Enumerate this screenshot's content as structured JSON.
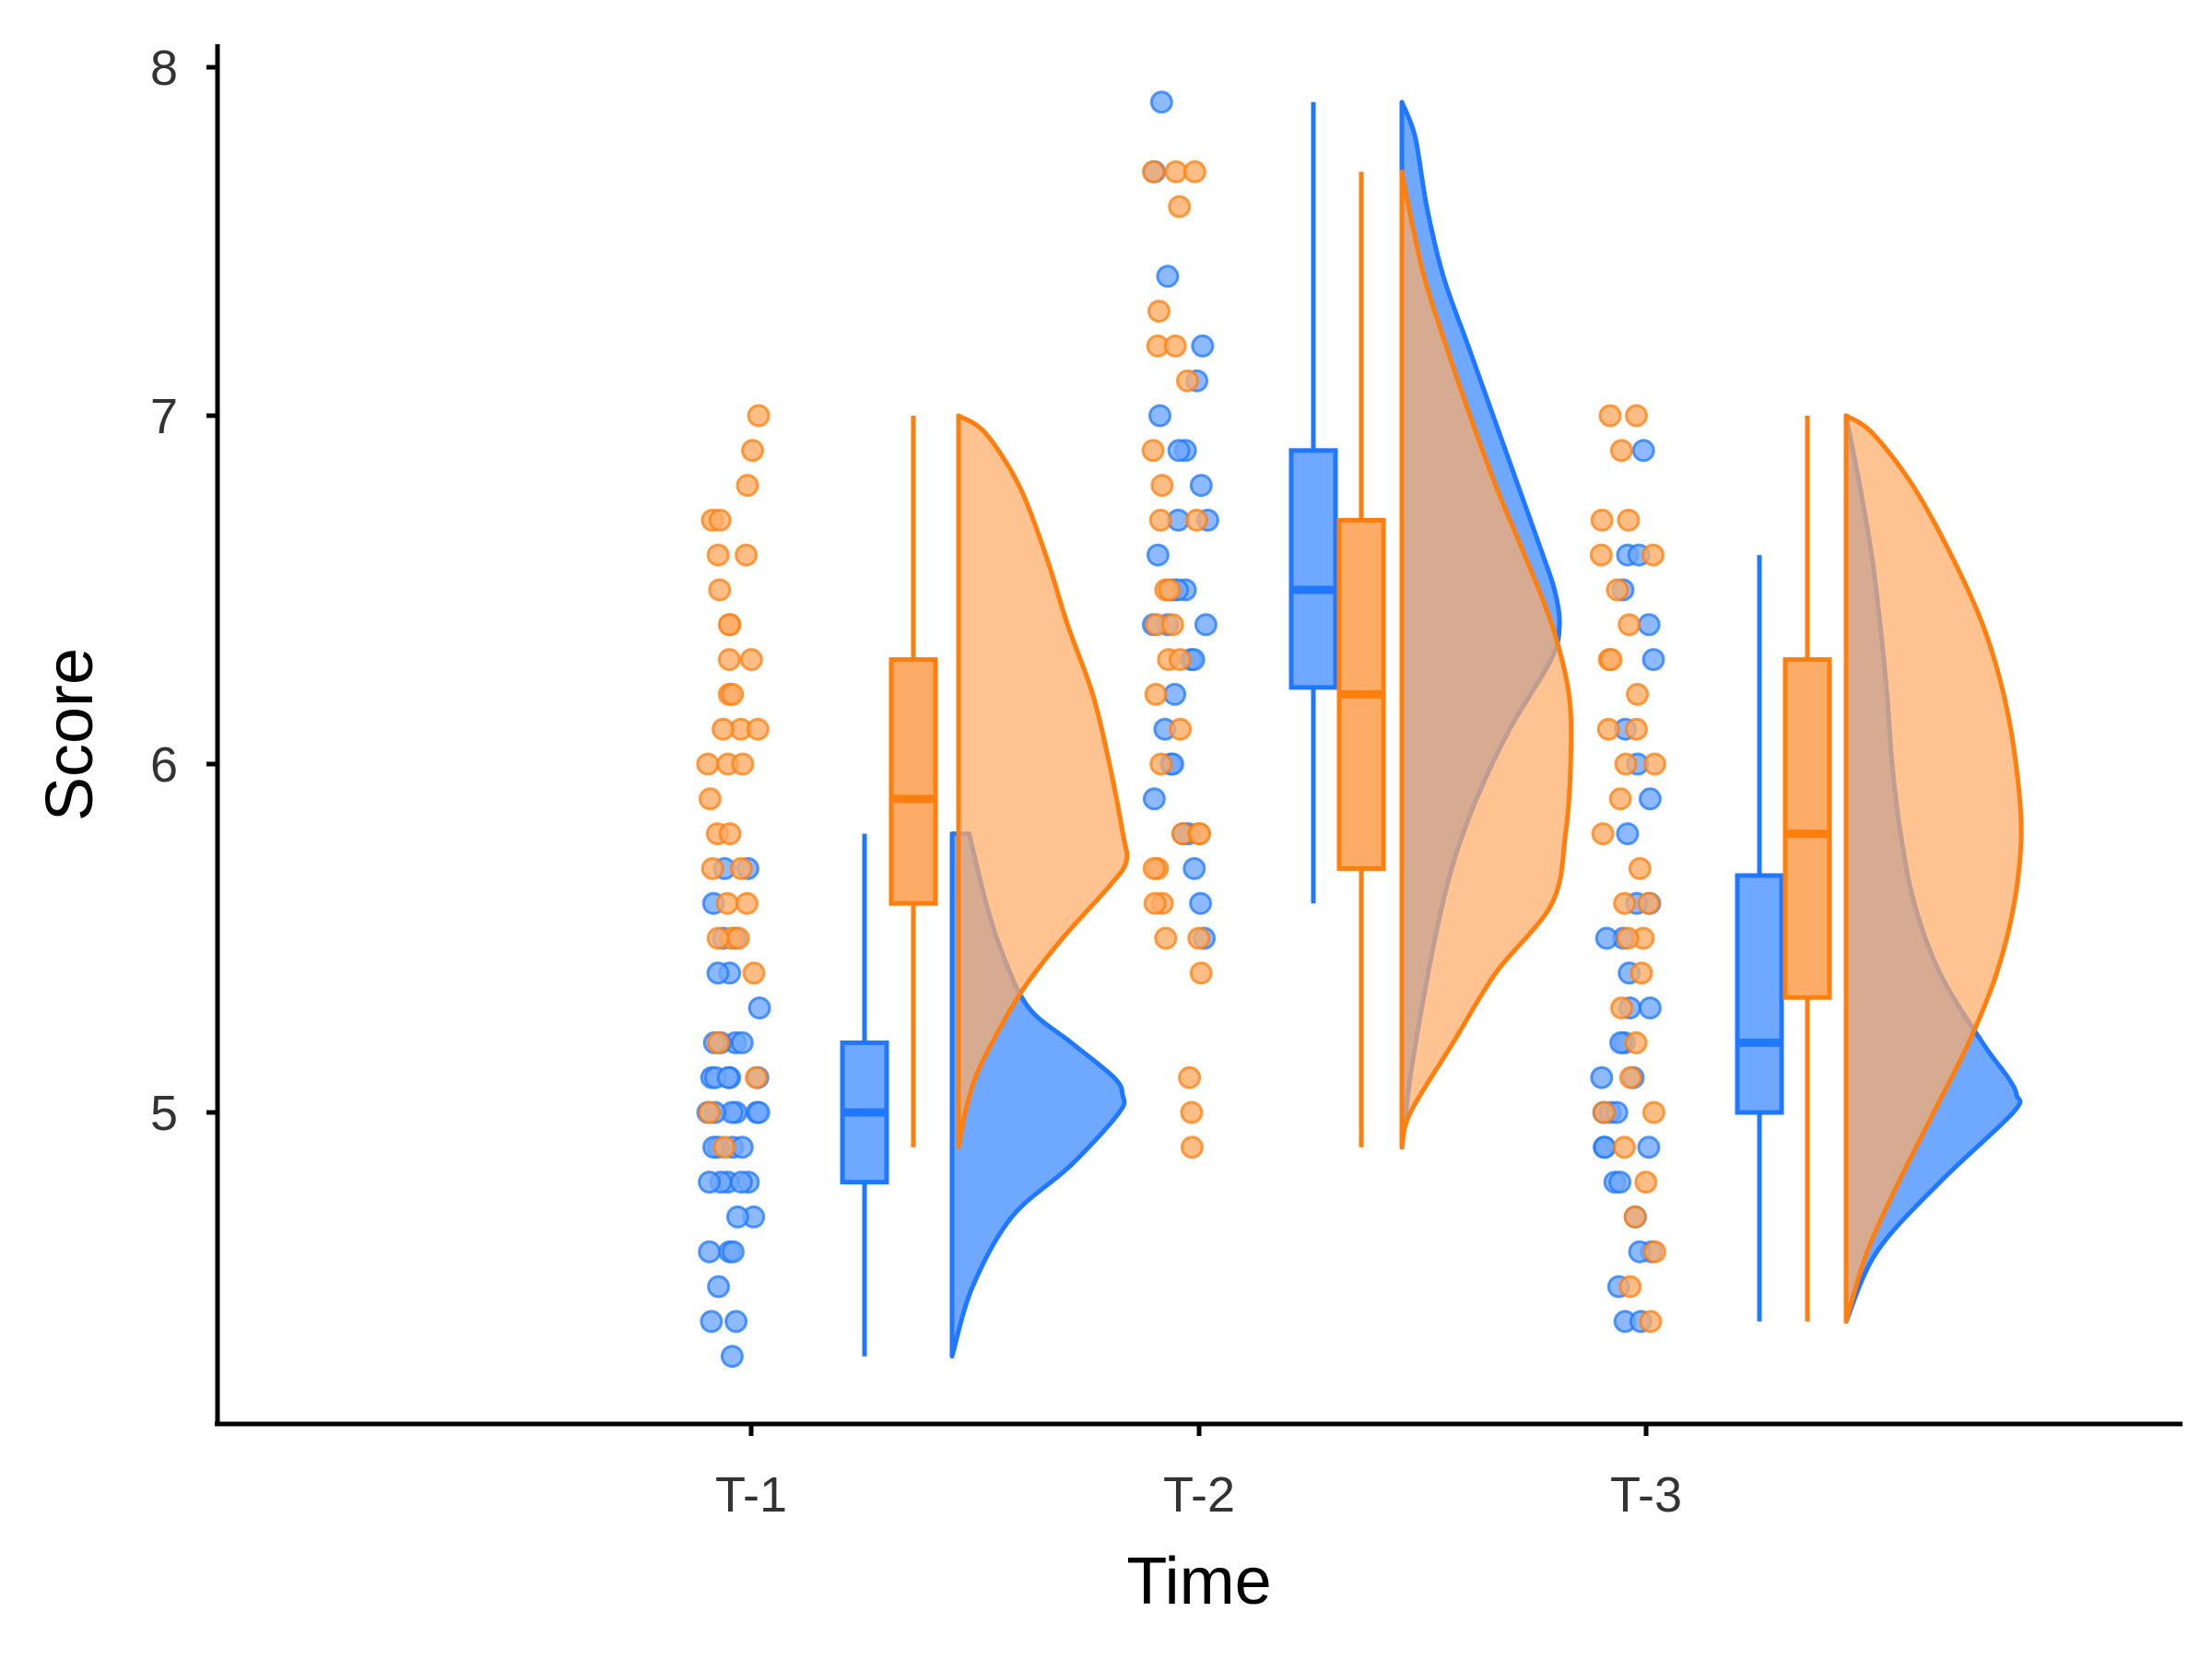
{
  "chart_data": {
    "type": "raincloud",
    "xlabel": "Time",
    "ylabel": "Score",
    "categories": [
      "T-1",
      "T-2",
      "T-3"
    ],
    "ylim": [
      4.13,
      8.07
    ],
    "yticks": [
      "5",
      "6",
      "7",
      "8"
    ],
    "grid": false,
    "legend": "none",
    "series": [
      {
        "color": "#1F78FF",
        "fill": "#6FA8FF",
        "groups": [
          {
            "category": "T-1",
            "box": {
              "min": 4.3,
              "q1": 4.8,
              "median": 5.0,
              "q3": 5.2,
              "max": 5.8
            },
            "density": {
              "min": 4.3,
              "max": 5.8,
              "y": [
                4.3,
                4.5,
                4.7,
                4.85,
                5.0,
                5.05,
                5.1,
                5.2,
                5.3,
                5.45,
                5.6,
                5.8
              ],
              "w": [
                0.0,
                0.12,
                0.35,
                0.7,
                0.98,
                1.0,
                0.95,
                0.7,
                0.45,
                0.3,
                0.2,
                0.1
              ]
            },
            "points": [
              4.3,
              4.4,
              4.4,
              4.5,
              4.6,
              4.6,
              4.6,
              4.7,
              4.7,
              4.8,
              4.8,
              4.8,
              4.8,
              4.8,
              4.9,
              4.9,
              4.9,
              4.9,
              5.0,
              5.0,
              5.0,
              5.0,
              5.0,
              5.0,
              5.1,
              5.1,
              5.1,
              5.1,
              5.1,
              5.2,
              5.2,
              5.2,
              5.2,
              5.3,
              5.4,
              5.4,
              5.5,
              5.5,
              5.6,
              5.7,
              5.7
            ]
          },
          {
            "category": "T-2",
            "box": {
              "min": 5.6,
              "q1": 6.22,
              "median": 6.5,
              "q3": 6.9,
              "max": 7.9
            },
            "density": {
              "min": 4.9,
              "max": 7.9,
              "y": [
                4.9,
                5.1,
                5.3,
                5.5,
                5.7,
                5.9,
                6.1,
                6.3,
                6.4,
                6.5,
                6.6,
                6.8,
                7.0,
                7.2,
                7.4,
                7.6,
                7.8,
                7.9
              ],
              "w": [
                0.0,
                0.05,
                0.12,
                0.2,
                0.3,
                0.45,
                0.65,
                0.9,
                0.95,
                0.92,
                0.85,
                0.7,
                0.55,
                0.4,
                0.25,
                0.15,
                0.08,
                0.0
              ]
            },
            "points": [
              5.5,
              5.6,
              5.7,
              5.8,
              5.8,
              5.9,
              6.0,
              6.0,
              6.1,
              6.2,
              6.3,
              6.3,
              6.4,
              6.4,
              6.4,
              6.5,
              6.5,
              6.5,
              6.6,
              6.7,
              6.7,
              6.8,
              6.9,
              6.9,
              7.0,
              7.1,
              7.2,
              7.4,
              7.7,
              7.9
            ]
          },
          {
            "category": "T-3",
            "box": {
              "min": 4.4,
              "q1": 5.0,
              "median": 5.2,
              "q3": 5.68,
              "max": 6.6
            },
            "density": {
              "min": 4.4,
              "max": 7.0,
              "y": [
                4.4,
                4.6,
                4.8,
                5.0,
                5.05,
                5.1,
                5.2,
                5.4,
                5.6,
                5.8,
                6.0,
                6.2,
                6.4,
                6.6,
                6.8,
                7.0
              ],
              "w": [
                0.0,
                0.18,
                0.55,
                0.98,
                1.0,
                0.95,
                0.8,
                0.55,
                0.4,
                0.32,
                0.27,
                0.24,
                0.2,
                0.15,
                0.08,
                0.0
              ]
            },
            "points": [
              4.4,
              4.4,
              4.5,
              4.6,
              4.6,
              4.7,
              4.8,
              4.8,
              4.9,
              4.9,
              4.9,
              5.0,
              5.0,
              5.0,
              5.1,
              5.1,
              5.2,
              5.2,
              5.3,
              5.3,
              5.4,
              5.5,
              5.5,
              5.6,
              5.6,
              5.8,
              5.9,
              6.0,
              6.1,
              6.3,
              6.4,
              6.5,
              6.6,
              6.6,
              6.9
            ]
          }
        ]
      },
      {
        "color": "#FF7F0E",
        "fill": "#FDAC67",
        "groups": [
          {
            "category": "T-1",
            "box": {
              "min": 4.9,
              "q1": 5.6,
              "median": 5.9,
              "q3": 6.3,
              "max": 7.0
            },
            "density": {
              "min": 4.9,
              "max": 7.0,
              "y": [
                4.9,
                5.0,
                5.1,
                5.2,
                5.35,
                5.5,
                5.65,
                5.72,
                5.8,
                6.0,
                6.2,
                6.4,
                6.6,
                6.8,
                6.95,
                7.0
              ],
              "w": [
                0.0,
                0.04,
                0.1,
                0.2,
                0.38,
                0.62,
                0.9,
                1.0,
                0.98,
                0.9,
                0.8,
                0.65,
                0.52,
                0.36,
                0.16,
                0.0
              ]
            },
            "points": [
              4.9,
              5.0,
              5.1,
              5.2,
              5.4,
              5.5,
              5.5,
              5.5,
              5.6,
              5.6,
              5.7,
              5.7,
              5.8,
              5.8,
              5.9,
              6.0,
              6.0,
              6.0,
              6.1,
              6.1,
              6.1,
              6.2,
              6.2,
              6.3,
              6.3,
              6.4,
              6.4,
              6.5,
              6.6,
              6.6,
              6.7,
              6.7,
              6.8,
              6.9,
              7.0
            ]
          },
          {
            "category": "T-2",
            "box": {
              "min": 4.9,
              "q1": 5.7,
              "median": 6.2,
              "q3": 6.7,
              "max": 7.7
            },
            "density": {
              "min": 4.9,
              "max": 7.7,
              "y": [
                4.9,
                5.0,
                5.2,
                5.4,
                5.6,
                5.8,
                6.0,
                6.2,
                6.4,
                6.6,
                6.8,
                7.0,
                7.2,
                7.4,
                7.6,
                7.7
              ],
              "w": [
                0.0,
                0.05,
                0.3,
                0.55,
                0.88,
                0.96,
                0.99,
                0.98,
                0.88,
                0.72,
                0.55,
                0.4,
                0.26,
                0.13,
                0.04,
                0.0
              ]
            },
            "points": [
              4.9,
              5.0,
              5.1,
              5.4,
              5.5,
              5.5,
              5.6,
              5.6,
              5.7,
              5.7,
              5.8,
              5.8,
              5.8,
              6.0,
              6.1,
              6.2,
              6.3,
              6.3,
              6.4,
              6.4,
              6.5,
              6.5,
              6.7,
              6.7,
              6.8,
              6.9,
              7.1,
              7.2,
              7.2,
              7.3,
              7.6,
              7.7,
              7.7,
              7.7
            ]
          },
          {
            "category": "T-3",
            "box": {
              "min": 4.4,
              "q1": 5.33,
              "median": 5.8,
              "q3": 6.3,
              "max": 7.0
            },
            "density": {
              "min": 4.4,
              "max": 7.0,
              "y": [
                4.4,
                4.6,
                4.8,
                5.0,
                5.2,
                5.4,
                5.6,
                5.8,
                6.0,
                6.2,
                6.4,
                6.6,
                6.8,
                6.95,
                7.0
              ],
              "w": [
                0.0,
                0.12,
                0.3,
                0.5,
                0.7,
                0.86,
                0.96,
                1.0,
                0.97,
                0.9,
                0.78,
                0.6,
                0.38,
                0.15,
                0.0
              ]
            },
            "points": [
              4.4,
              4.5,
              4.6,
              4.7,
              4.8,
              4.9,
              5.0,
              5.0,
              5.1,
              5.2,
              5.3,
              5.4,
              5.5,
              5.5,
              5.6,
              5.6,
              5.7,
              5.8,
              5.9,
              6.0,
              6.0,
              6.1,
              6.1,
              6.2,
              6.3,
              6.3,
              6.4,
              6.5,
              6.6,
              6.6,
              6.7,
              6.7,
              6.9,
              7.0,
              7.0
            ]
          }
        ]
      }
    ]
  }
}
